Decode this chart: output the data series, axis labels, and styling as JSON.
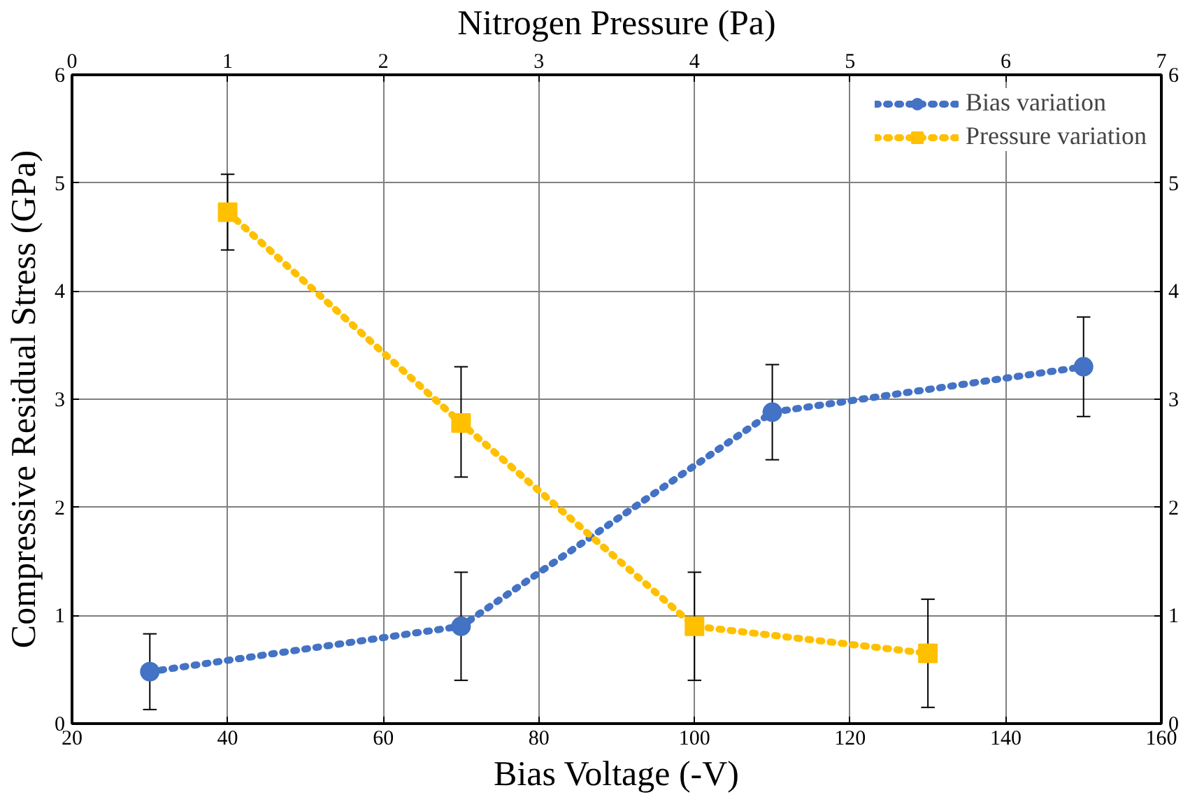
{
  "chart_data": {
    "type": "line",
    "xlabel": "Bias Voltage (-V)",
    "x2label": "Nitrogen Pressure (Pa)",
    "ylabel": "Compressive Residual Stress (GPa)",
    "xlim": [
      20,
      160
    ],
    "xticks": [
      20,
      40,
      60,
      80,
      100,
      120,
      140,
      160
    ],
    "x2lim": [
      0,
      7
    ],
    "x2ticks": [
      0,
      1,
      2,
      3,
      4,
      5,
      6,
      7
    ],
    "ylim": [
      0,
      6
    ],
    "yticks": [
      0,
      1,
      2,
      3,
      4,
      5,
      6
    ],
    "y2lim": [
      0,
      6
    ],
    "y2ticks": [
      0,
      1,
      2,
      3,
      4,
      5,
      6
    ],
    "grid": true,
    "legend": "top right",
    "line_style": "dotted",
    "series": [
      {
        "name": "Bias variation",
        "color": "#4472c4",
        "marker": "circle",
        "x": [
          30,
          70,
          110,
          150
        ],
        "values": [
          0.48,
          0.9,
          2.88,
          3.3
        ],
        "errors": [
          [
            0.13,
            0.83
          ],
          [
            0.4,
            1.4
          ],
          [
            2.44,
            3.32
          ],
          [
            2.84,
            3.76
          ]
        ]
      },
      {
        "name": "Pressure variation",
        "color": "#ffc000",
        "marker": "square",
        "axis": "x2",
        "x": [
          1,
          2.5,
          4,
          5.5
        ],
        "values": [
          4.73,
          2.78,
          0.9,
          0.65
        ],
        "errors": [
          [
            4.38,
            5.08
          ],
          [
            2.28,
            3.3
          ],
          [
            0.4,
            1.4
          ],
          [
            0.15,
            1.15
          ]
        ]
      }
    ]
  }
}
